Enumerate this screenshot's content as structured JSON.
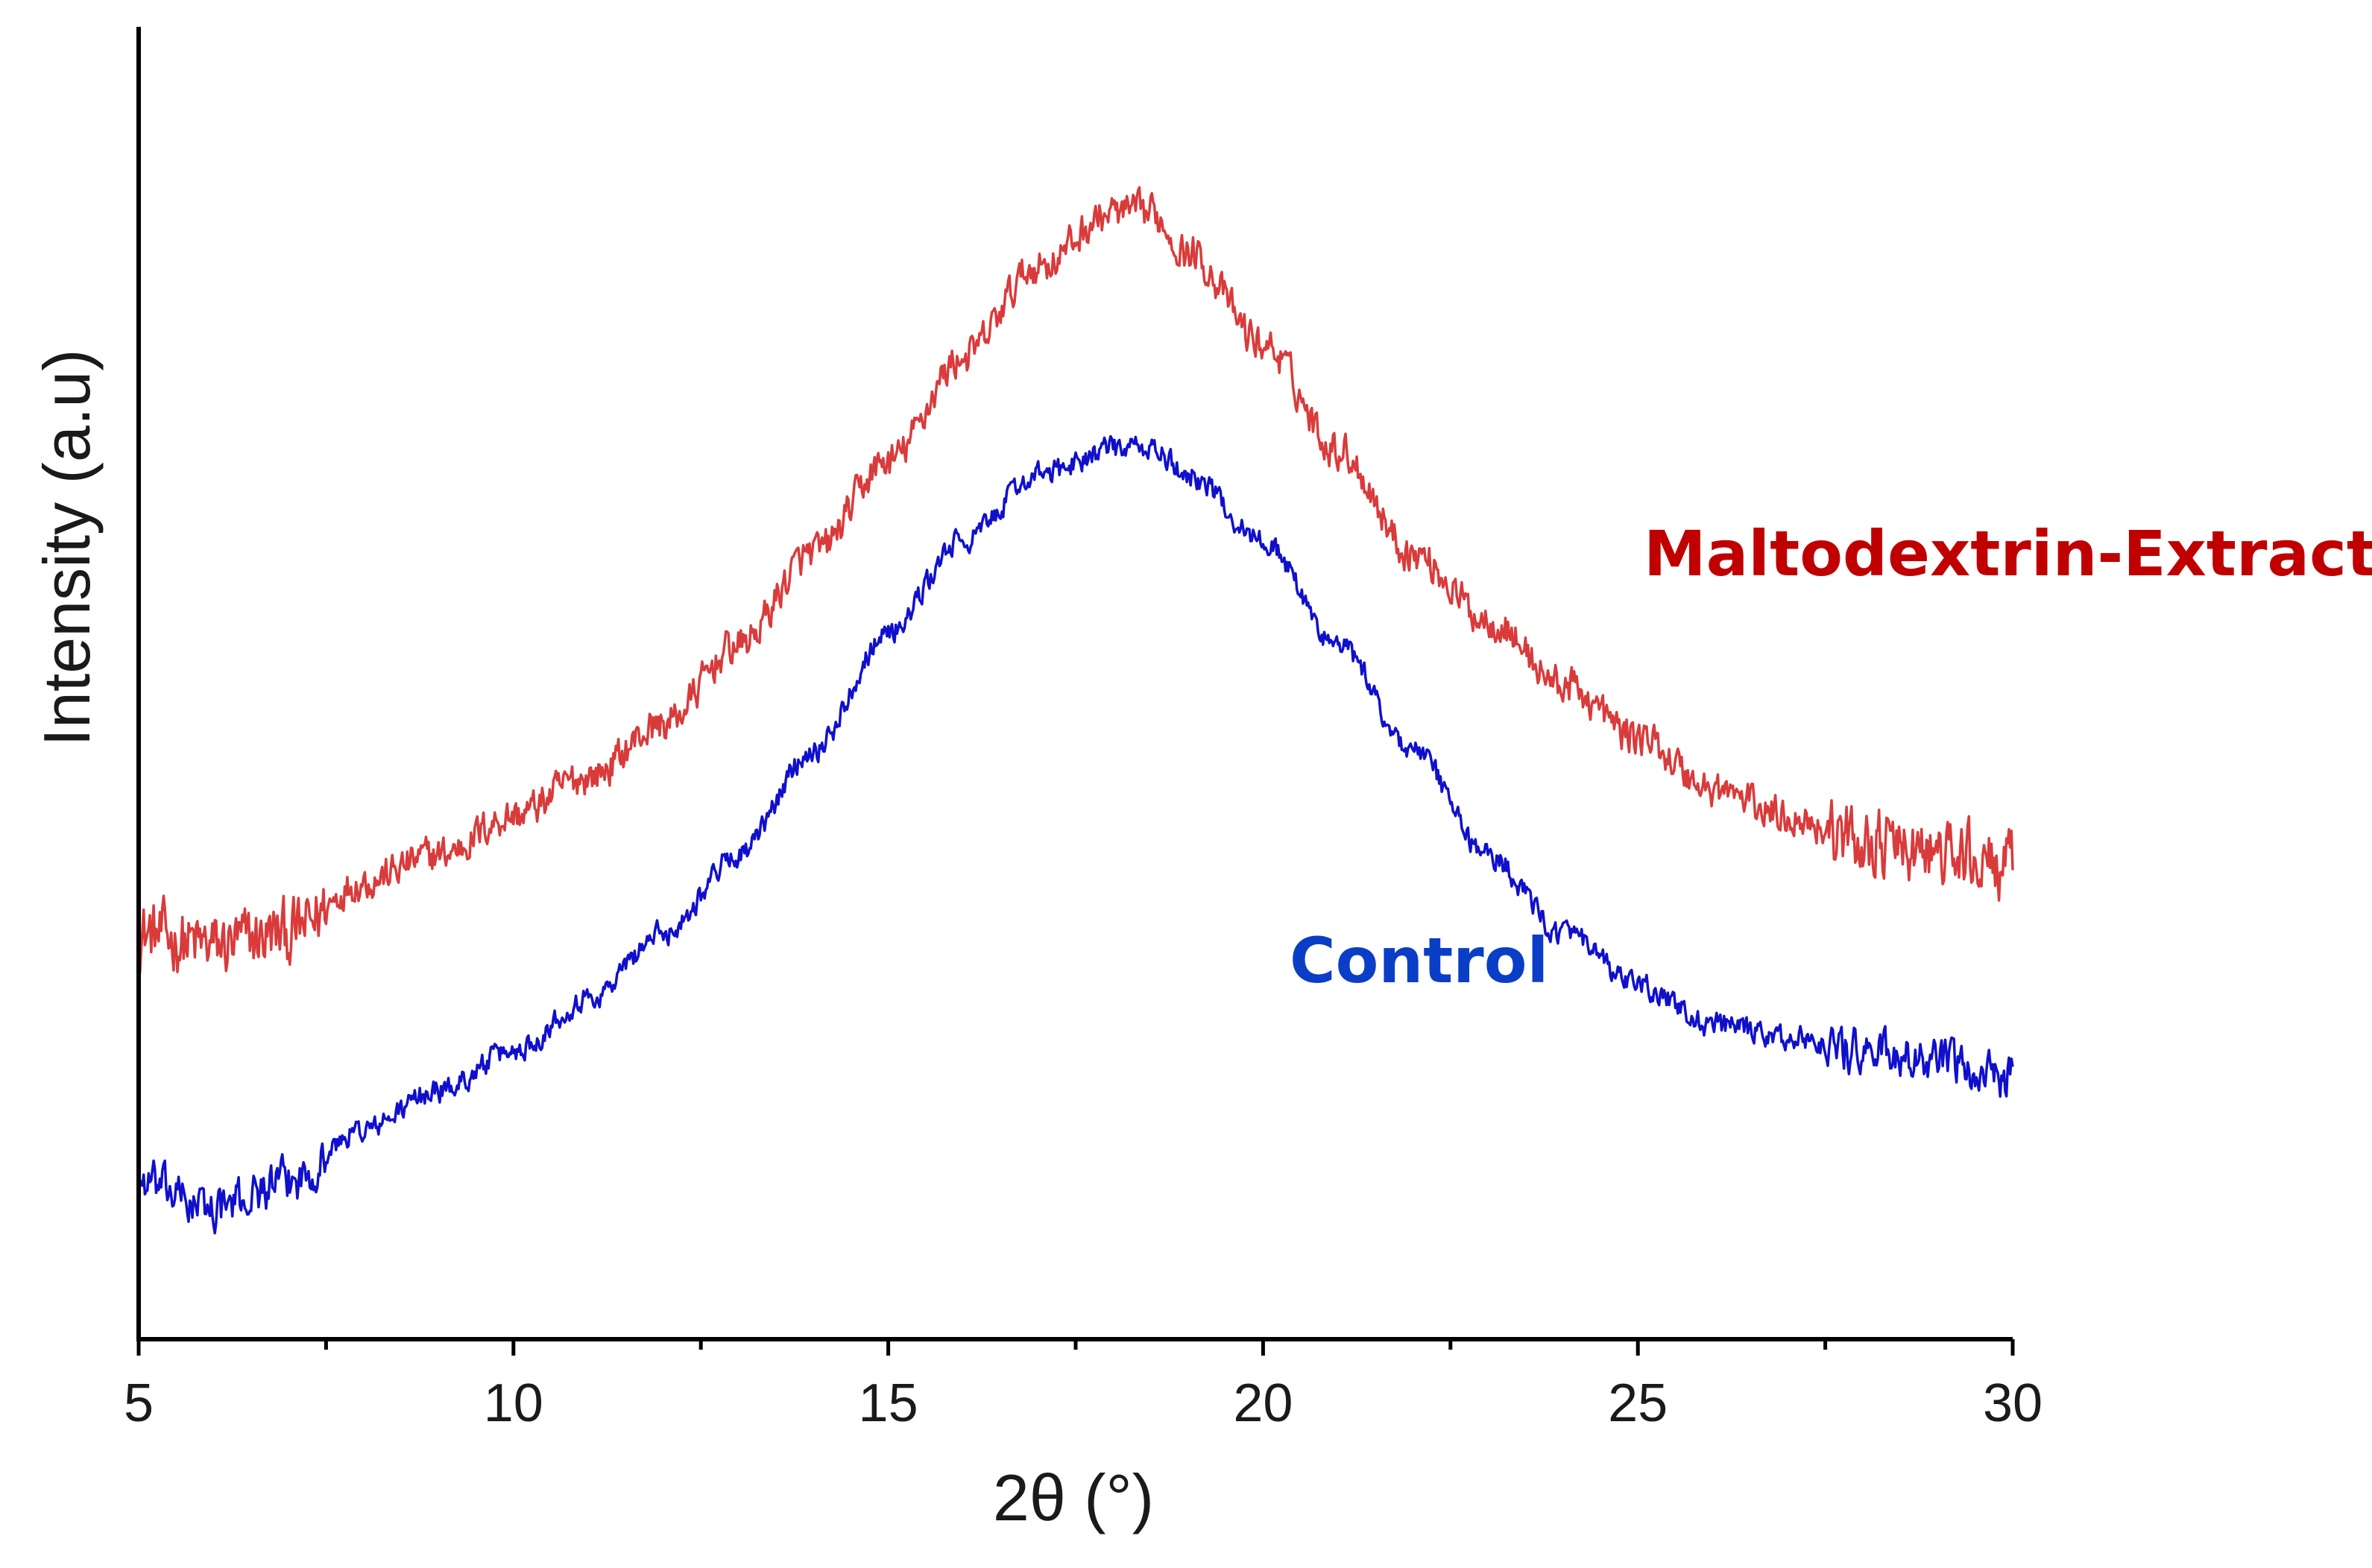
{
  "chart_data": {
    "type": "line",
    "title": "",
    "xlabel": "2θ (°)",
    "ylabel": "Intensity (a.u)",
    "xlim": [
      5,
      30
    ],
    "ylim": [
      0,
      100
    ],
    "xticks": [
      5,
      10,
      15,
      20,
      25,
      30
    ],
    "xtick_labels": [
      "5",
      "10",
      "15",
      "20",
      "25",
      "30"
    ],
    "yticks_shown": false,
    "grid": false,
    "series": [
      {
        "name": "Maltodextrin-Extract",
        "label": "Maltodextrin-Extract",
        "color": "#d93b3b",
        "label_color": "#c00000",
        "x": [
          5,
          6,
          7,
          8,
          9,
          10,
          11,
          12,
          13,
          14,
          15,
          16,
          17,
          18,
          18.5,
          19,
          20,
          21,
          22,
          23,
          24,
          25,
          26,
          27,
          28,
          29,
          30
        ],
        "values": [
          31,
          30,
          31,
          35,
          37,
          40,
          43,
          47,
          53,
          60,
          67,
          75,
          82,
          86,
          86,
          83,
          76,
          68,
          60,
          55,
          50,
          46,
          42,
          40,
          38,
          37,
          36
        ],
        "noise_amplitude": 2.2
      },
      {
        "name": "Control",
        "label": "Control",
        "color": "#1010cc",
        "label_color": "#0b3ec6",
        "x": [
          5,
          6,
          7,
          8,
          9,
          10,
          11,
          12,
          13,
          14,
          15,
          16,
          17,
          18,
          18.5,
          19,
          20,
          21,
          22,
          23,
          24,
          25,
          26,
          27,
          28,
          29,
          30
        ],
        "values": [
          12,
          10,
          12,
          16,
          19,
          22,
          26,
          31,
          37,
          45,
          54,
          61,
          66,
          68,
          68,
          66,
          61,
          53,
          45,
          37,
          31,
          27,
          24,
          23,
          22,
          21,
          20
        ],
        "noise_amplitude": 1.4
      }
    ]
  }
}
